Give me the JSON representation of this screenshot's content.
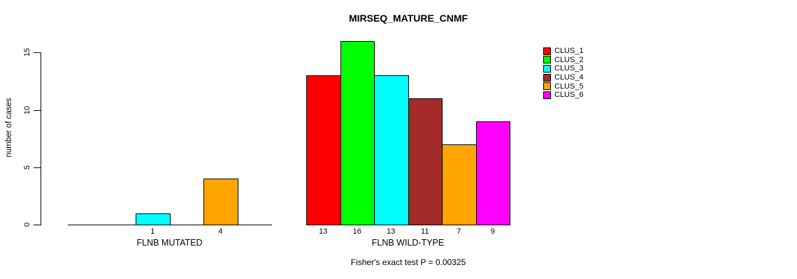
{
  "chart_data": {
    "type": "bar",
    "title": "MIRSEQ_MATURE_CNMF",
    "ylabel": "number of cases",
    "annotation": "Fisher's exact test P = 0.00325",
    "categories": [
      "FLNB MUTATED",
      "FLNB WILD-TYPE"
    ],
    "series": [
      {
        "name": "CLUS_1",
        "color": "#FF0000",
        "values": [
          0,
          13
        ]
      },
      {
        "name": "CLUS_2",
        "color": "#00FF00",
        "values": [
          0,
          16
        ]
      },
      {
        "name": "CLUS_3",
        "color": "#00FFFF",
        "values": [
          1,
          13
        ]
      },
      {
        "name": "CLUS_4",
        "color": "#A52A2A",
        "values": [
          0,
          11
        ]
      },
      {
        "name": "CLUS_5",
        "color": "#FFA500",
        "values": [
          4,
          7
        ]
      },
      {
        "name": "CLUS_6",
        "color": "#FF00FF",
        "values": [
          0,
          9
        ]
      }
    ],
    "yticks": [
      0,
      5,
      10,
      15
    ],
    "ylim": [
      0,
      16.5
    ],
    "grid": false,
    "legend_position": "right",
    "bar_value_labels_shown": true,
    "zero_bars_hidden": true
  }
}
